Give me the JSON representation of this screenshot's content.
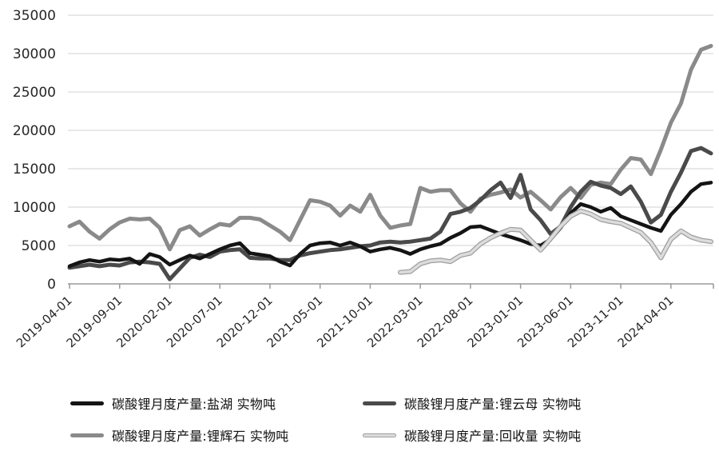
{
  "chart_data": {
    "type": "line",
    "title": "",
    "grid": "horizontal",
    "legend_position": "bottom",
    "x_interval": "monthly",
    "x_start_month": "2019-04",
    "x_end_month": "2024-08",
    "x_tick_labels": [
      "2019-04-01",
      "2019-09-01",
      "2020-02-01",
      "2020-07-01",
      "2020-12-01",
      "2021-05-01",
      "2021-10-01",
      "2022-03-01",
      "2022-08-01",
      "2023-01-01",
      "2023-06-01",
      "2023-11-01",
      "2024-04-01"
    ],
    "x_tick_month_indices": [
      0,
      5,
      10,
      15,
      20,
      25,
      30,
      35,
      40,
      45,
      50,
      55,
      60
    ],
    "y_ticks": [
      0,
      5000,
      10000,
      15000,
      20000,
      25000,
      30000,
      35000
    ],
    "ylim": [
      0,
      35000
    ],
    "colors": {
      "grid": "#d9d9d9",
      "axis": "#999999",
      "tick_label": "#262626"
    },
    "series": [
      {
        "key": "salt-lake",
        "name": "碳酸锂月度产量:盐湖 实物吨",
        "color": "#141414",
        "line_width": 4.5,
        "values": [
          2300,
          2800,
          3100,
          2900,
          3200,
          3100,
          3300,
          2600,
          3900,
          3500,
          2500,
          3100,
          3700,
          3300,
          3900,
          4500,
          5000,
          5300,
          4000,
          3800,
          3600,
          2900,
          2400,
          3900,
          5000,
          5300,
          5400,
          5000,
          5400,
          4900,
          4200,
          4500,
          4700,
          4400,
          3900,
          4500,
          4900,
          5200,
          6000,
          6600,
          7400,
          7500,
          7000,
          6500,
          6100,
          5700,
          5200,
          5000,
          5800,
          7300,
          9200,
          10400,
          10000,
          9400,
          9900,
          8800,
          8300,
          7800,
          7300,
          6900,
          9000,
          10400,
          12000,
          13000,
          13200
        ]
      },
      {
        "key": "lepidolite",
        "name": "碳酸锂月度产量:锂云母 实物吨",
        "color": "#4a4a4a",
        "line_width": 5,
        "values": [
          2100,
          2300,
          2500,
          2300,
          2500,
          2400,
          2800,
          2900,
          2800,
          2600,
          600,
          2000,
          3400,
          3800,
          3500,
          4200,
          4400,
          4500,
          3400,
          3300,
          3300,
          3100,
          3100,
          3700,
          4000,
          4200,
          4400,
          4500,
          4700,
          4900,
          5000,
          5400,
          5500,
          5400,
          5500,
          5700,
          5900,
          6800,
          9100,
          9400,
          9900,
          10900,
          12200,
          13200,
          11200,
          14200,
          9700,
          8300,
          6500,
          7500,
          10000,
          12000,
          13300,
          12800,
          12500,
          11700,
          12700,
          10700,
          8000,
          9000,
          12000,
          14500,
          17300,
          17700,
          17000
        ]
      },
      {
        "key": "spodumene",
        "name": "碳酸锂月度产量:锂辉石 实物吨",
        "color": "#8a8a8a",
        "line_width": 5,
        "values": [
          7500,
          8100,
          6800,
          5900,
          7100,
          8000,
          8500,
          8400,
          8500,
          7300,
          4500,
          7000,
          7500,
          6300,
          7100,
          7800,
          7600,
          8600,
          8600,
          8400,
          7600,
          6800,
          5700,
          8300,
          10900,
          10700,
          10200,
          8900,
          10200,
          9400,
          11600,
          8900,
          7300,
          7600,
          7800,
          12500,
          12000,
          12200,
          12200,
          10500,
          9400,
          11100,
          11600,
          11900,
          12300,
          11250,
          12000,
          10900,
          9700,
          11300,
          12500,
          11200,
          12900,
          13200,
          13000,
          14900,
          16400,
          16200,
          14300,
          17500,
          21000,
          23500,
          27900,
          30500,
          31000
        ]
      },
      {
        "key": "recycled",
        "name": "碳酸锂月度产量:回收量 实物吨",
        "color": "#dcdcdc",
        "outline_color": "#9e9e9e",
        "line_width": 3.5,
        "values": [
          null,
          null,
          null,
          null,
          null,
          null,
          null,
          null,
          null,
          null,
          null,
          null,
          null,
          null,
          null,
          null,
          null,
          null,
          null,
          null,
          null,
          null,
          null,
          null,
          null,
          null,
          null,
          null,
          null,
          null,
          null,
          null,
          null,
          1500,
          1600,
          2600,
          3000,
          3100,
          2900,
          3700,
          4000,
          5200,
          6000,
          6600,
          7100,
          7000,
          5700,
          4400,
          5900,
          7500,
          8800,
          9500,
          9100,
          8400,
          8100,
          7900,
          7300,
          6700,
          5400,
          3400,
          5800,
          6900,
          6100,
          5700,
          5500
        ]
      }
    ]
  }
}
